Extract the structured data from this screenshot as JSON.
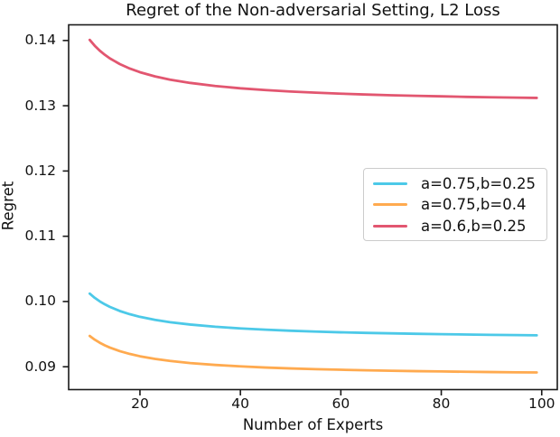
{
  "chart_data": {
    "type": "line",
    "title": "Regret of the Non-adversarial Setting, L2 Loss",
    "xlabel": "Number of Experts",
    "ylabel": "Regret",
    "grid": false,
    "legend_position": "center right",
    "xlim": [
      5.8,
      103.1
    ],
    "ylim": [
      0.0865,
      0.1424
    ],
    "x_ticks": [
      {
        "value": 20,
        "label": "20"
      },
      {
        "value": 40,
        "label": "40"
      },
      {
        "value": 60,
        "label": "60"
      },
      {
        "value": 80,
        "label": "80"
      },
      {
        "value": 100,
        "label": "100"
      }
    ],
    "y_ticks": [
      {
        "value": 0.09,
        "label": "0.09"
      },
      {
        "value": 0.1,
        "label": "0.10"
      },
      {
        "value": 0.11,
        "label": "0.11"
      },
      {
        "value": 0.12,
        "label": "0.12"
      },
      {
        "value": 0.13,
        "label": "0.13"
      },
      {
        "value": 0.14,
        "label": "0.14"
      }
    ],
    "x": [
      10,
      11,
      12,
      13,
      14,
      16,
      18,
      20,
      23,
      26,
      30,
      35,
      40,
      45,
      50,
      55,
      60,
      65,
      70,
      75,
      80,
      85,
      90,
      95,
      99
    ],
    "series": [
      {
        "name": "a=0.75,b=0.25",
        "color": "#4cc9e8",
        "values": [
          0.10121,
          0.10056,
          0.10002,
          0.09957,
          0.09918,
          0.09854,
          0.09805,
          0.09765,
          0.09719,
          0.09683,
          0.09647,
          0.09613,
          0.09588,
          0.09568,
          0.09552,
          0.09539,
          0.09528,
          0.09519,
          0.09512,
          0.09505,
          0.09499,
          0.09494,
          0.09489,
          0.09485,
          0.09482
        ]
      },
      {
        "name": "a=0.75,b=0.4",
        "color": "#ffaa4f",
        "values": [
          0.09472,
          0.09415,
          0.09368,
          0.09328,
          0.09294,
          0.09239,
          0.09196,
          0.09161,
          0.0912,
          0.09089,
          0.09057,
          0.09028,
          0.09006,
          0.08988,
          0.08974,
          0.08963,
          0.08954,
          0.08946,
          0.08939,
          0.08933,
          0.08928,
          0.08923,
          0.08919,
          0.08915,
          0.08913
        ]
      },
      {
        "name": "a=0.6,b=0.25",
        "color": "#e25670",
        "values": [
          0.14009,
          0.13919,
          0.13844,
          0.13781,
          0.13726,
          0.13638,
          0.13569,
          0.13514,
          0.1345,
          0.134,
          0.1335,
          0.13303,
          0.13267,
          0.1324,
          0.13218,
          0.132,
          0.13185,
          0.13172,
          0.13161,
          0.13152,
          0.13144,
          0.13136,
          0.1313,
          0.13124,
          0.1312
        ]
      }
    ],
    "colors": {
      "axes": "#1a1a1a",
      "text": "#111111",
      "legend_border": "#cccccc"
    }
  }
}
